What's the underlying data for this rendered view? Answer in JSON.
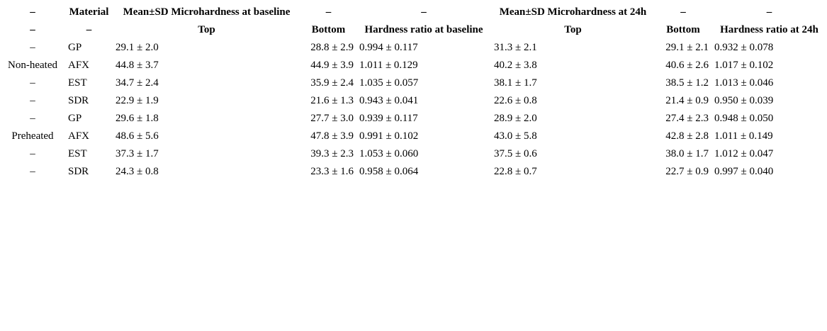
{
  "table": {
    "header": [
      [
        "–",
        "Material",
        "Mean±SD Microhardness at baseline",
        "–",
        "–",
        "Mean±SD Microhardness at 24h",
        "–",
        "–"
      ],
      [
        "–",
        "–",
        "Top",
        "Bottom",
        "Hardness ratio at baseline",
        "Top",
        "Bottom",
        "Hardness ratio at 24h"
      ]
    ],
    "rows": [
      [
        "–",
        "GP",
        "29.1 ± 2.0",
        "28.8 ± 2.9",
        "0.994 ± 0.117",
        "31.3 ± 2.1",
        "29.1 ± 2.1",
        "0.932 ± 0.078"
      ],
      [
        "Non-heated",
        "AFX",
        "44.8 ± 3.7",
        "44.9 ± 3.9",
        "1.011 ± 0.129",
        "40.2 ± 3.8",
        "40.6 ± 2.6",
        "1.017 ± 0.102"
      ],
      [
        "–",
        "EST",
        "34.7 ± 2.4",
        "35.9 ± 2.4",
        "1.035 ± 0.057",
        "38.1 ± 1.7",
        "38.5 ± 1.2",
        "1.013 ± 0.046"
      ],
      [
        "–",
        "SDR",
        "22.9 ± 1.9",
        "21.6 ± 1.3",
        "0.943 ± 0.041",
        "22.6 ± 0.8",
        "21.4 ± 0.9",
        "0.950 ± 0.039"
      ],
      [
        "–",
        "GP",
        "29.6 ± 1.8",
        "27.7 ± 3.0",
        "0.939 ± 0.117",
        "28.9 ± 2.0",
        "27.4 ± 2.3",
        "0.948 ± 0.050"
      ],
      [
        "Preheated",
        "AFX",
        "48.6 ± 5.6",
        "47.8 ± 3.9",
        "0.991 ± 0.102",
        "43.0 ± 5.8",
        "42.8 ± 2.8",
        "1.011 ± 0.149"
      ],
      [
        "–",
        "EST",
        "37.3 ± 1.7",
        "39.3 ± 2.3",
        "1.053 ± 0.060",
        "37.5 ± 0.6",
        "38.0 ± 1.7",
        "1.012 ± 0.047"
      ],
      [
        "–",
        "SDR",
        "24.3 ± 0.8",
        "23.3 ± 1.6",
        "0.958 ± 0.064",
        "22.8 ± 0.7",
        "22.7 ± 0.9",
        "0.997 ± 0.040"
      ]
    ]
  }
}
